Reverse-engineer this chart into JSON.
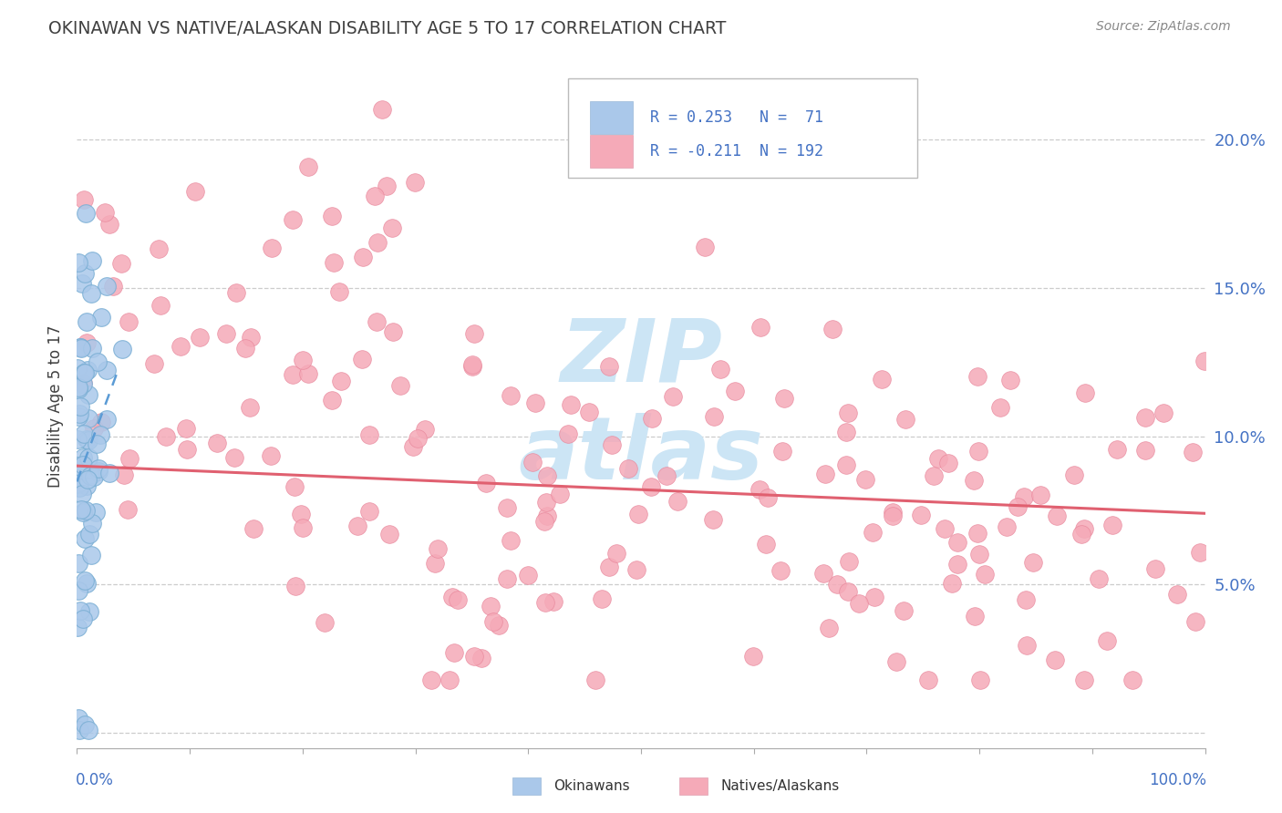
{
  "title": "OKINAWAN VS NATIVE/ALASKAN DISABILITY AGE 5 TO 17 CORRELATION CHART",
  "source": "Source: ZipAtlas.com",
  "ylabel": "Disability Age 5 to 17",
  "y_ticks": [
    0.0,
    0.05,
    0.1,
    0.15,
    0.2
  ],
  "y_tick_labels": [
    "",
    "5.0%",
    "10.0%",
    "15.0%",
    "20.0%"
  ],
  "xlim": [
    0.0,
    1.0
  ],
  "ylim": [
    -0.005,
    0.225
  ],
  "okinawan_color": "#aac8ea",
  "native_color": "#f5aab8",
  "okinawan_edge_color": "#7bafd4",
  "native_edge_color": "#e8859a",
  "okinawan_line_color": "#5b9bd5",
  "native_line_color": "#e06070",
  "background_color": "#ffffff",
  "watermark_color": "#cce5f5",
  "legend_R1": "R = 0.253",
  "legend_N1": "N =  71",
  "legend_R2": "R = -0.211",
  "legend_N2": "N = 192",
  "label_color": "#4472c4",
  "title_color": "#404040",
  "seed": 12345
}
